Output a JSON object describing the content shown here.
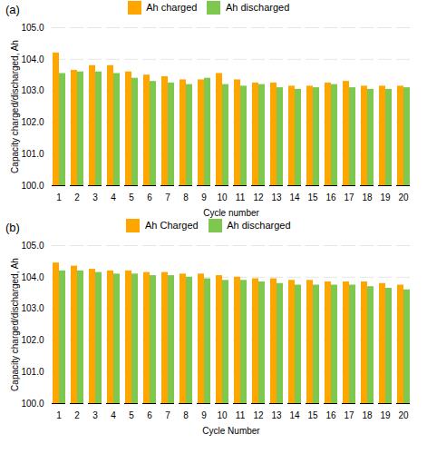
{
  "chart_data": [
    {
      "type": "bar",
      "title": "(a)",
      "categories": [
        "1",
        "2",
        "3",
        "4",
        "5",
        "6",
        "7",
        "8",
        "9",
        "10",
        "11",
        "12",
        "13",
        "14",
        "15",
        "16",
        "17",
        "18",
        "19",
        "20"
      ],
      "series": [
        {
          "name": "Ah charged",
          "color": "#FFA500",
          "values": [
            104.2,
            103.65,
            103.8,
            103.8,
            103.6,
            103.5,
            103.45,
            103.35,
            103.35,
            103.55,
            103.35,
            103.25,
            103.25,
            103.15,
            103.15,
            103.25,
            103.3,
            103.15,
            103.15,
            103.15
          ]
        },
        {
          "name": "Ah discharged",
          "color": "#7EC850",
          "values": [
            103.55,
            103.6,
            103.6,
            103.55,
            103.4,
            103.3,
            103.25,
            103.2,
            103.4,
            103.2,
            103.15,
            103.2,
            103.1,
            103.05,
            103.1,
            103.2,
            103.1,
            103.05,
            103.05,
            103.1
          ]
        }
      ],
      "xlabel": "Cycle number",
      "ylabel": "Capacity charged/discharged, Ah",
      "ylim": [
        100,
        105
      ],
      "yticks": [
        100,
        101,
        102,
        103,
        104,
        105
      ],
      "grid": true,
      "legend": "upper center"
    },
    {
      "type": "bar",
      "title": "(b)",
      "categories": [
        "1",
        "2",
        "3",
        "4",
        "5",
        "6",
        "7",
        "8",
        "9",
        "10",
        "11",
        "12",
        "13",
        "14",
        "15",
        "16",
        "17",
        "18",
        "19",
        "20"
      ],
      "series": [
        {
          "name": "Ah Charged",
          "color": "#FFA500",
          "values": [
            104.45,
            104.35,
            104.25,
            104.2,
            104.2,
            104.15,
            104.15,
            104.1,
            104.1,
            104.05,
            104.0,
            103.95,
            103.95,
            103.9,
            103.9,
            103.85,
            103.85,
            103.85,
            103.8,
            103.75
          ]
        },
        {
          "name": "Ah discharged",
          "color": "#7EC850",
          "values": [
            104.2,
            104.2,
            104.15,
            104.1,
            104.1,
            104.05,
            104.05,
            104.0,
            103.95,
            103.9,
            103.9,
            103.85,
            103.8,
            103.75,
            103.75,
            103.75,
            103.75,
            103.7,
            103.65,
            103.6
          ]
        }
      ],
      "xlabel": "Cycle Number",
      "ylabel": "Capacity charged/discharged, Ah",
      "ylim": [
        100,
        105
      ],
      "yticks": [
        100,
        101,
        102,
        103,
        104,
        105
      ],
      "grid": true,
      "legend": "upper center"
    }
  ]
}
